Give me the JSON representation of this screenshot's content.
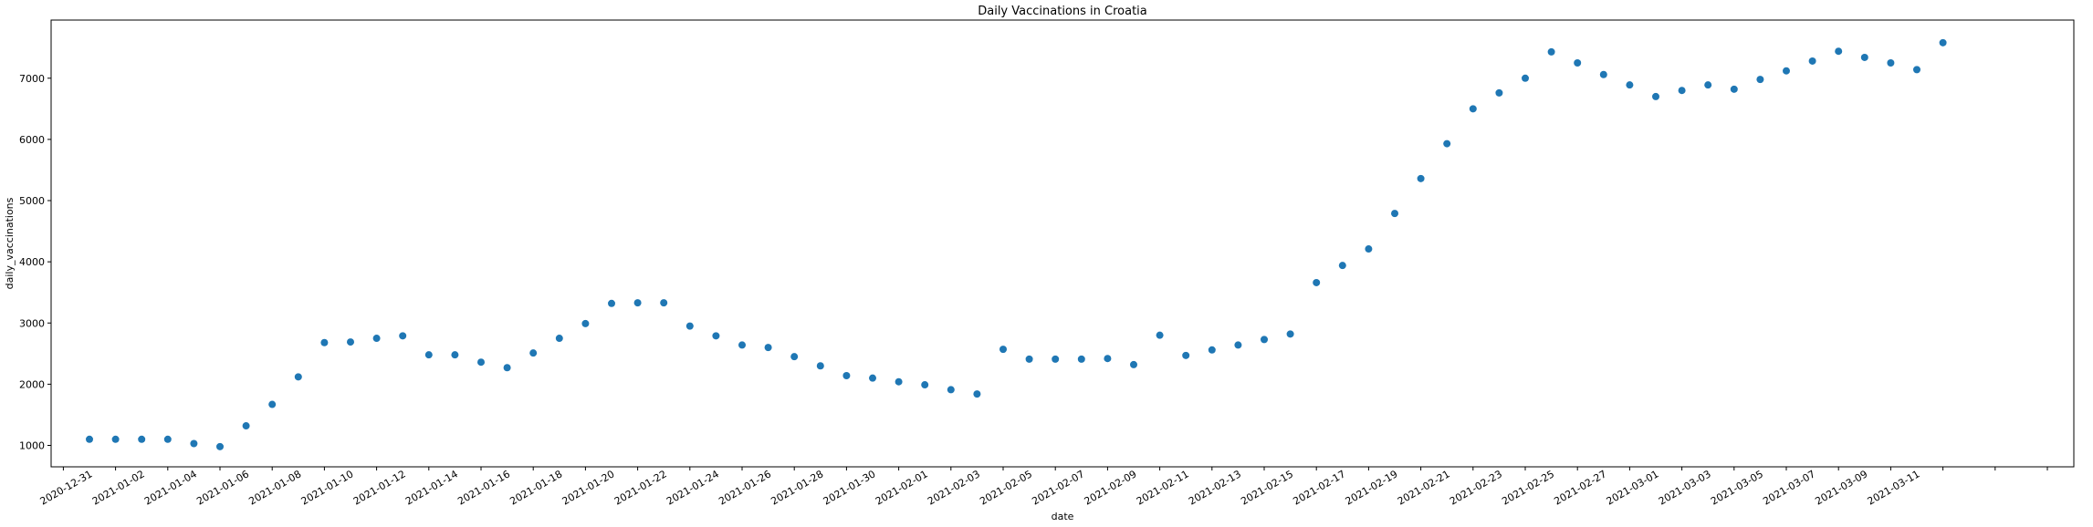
{
  "chart_data": {
    "type": "scatter",
    "title": "Daily Vaccinations in Croatia",
    "xlabel": "date",
    "ylabel": "daily_vaccinations",
    "x_start": "2020-12-31",
    "x_tick_labels": [
      "2020-12-31",
      "2021-01-02",
      "2021-01-04",
      "2021-01-06",
      "2021-01-08",
      "2021-01-10",
      "2021-01-12",
      "2021-01-14",
      "2021-01-16",
      "2021-01-18",
      "2021-01-20",
      "2021-01-22",
      "2021-01-24",
      "2021-01-26",
      "2021-01-28",
      "2021-01-30",
      "2021-02-01",
      "2021-02-03",
      "2021-02-05",
      "2021-02-07",
      "2021-02-09",
      "2021-02-11",
      "2021-02-13",
      "2021-02-15",
      "2021-02-17",
      "2021-02-19",
      "2021-02-21",
      "2021-02-23",
      "2021-02-25",
      "2021-02-27",
      "2021-03-01",
      "2021-03-03",
      "2021-03-05",
      "2021-03-07",
      "2021-03-09",
      "2021-03-11"
    ],
    "y_ticks": [
      1000,
      2000,
      3000,
      4000,
      5000,
      6000,
      7000
    ],
    "ylim": [
      650,
      7950
    ],
    "x": [
      "2020-12-31",
      "2021-01-01",
      "2021-01-02",
      "2021-01-03",
      "2021-01-04",
      "2021-01-05",
      "2021-01-06",
      "2021-01-07",
      "2021-01-08",
      "2021-01-09",
      "2021-01-10",
      "2021-01-11",
      "2021-01-12",
      "2021-01-13",
      "2021-01-14",
      "2021-01-15",
      "2021-01-16",
      "2021-01-17",
      "2021-01-18",
      "2021-01-19",
      "2021-01-20",
      "2021-01-21",
      "2021-01-22",
      "2021-01-23",
      "2021-01-24",
      "2021-01-25",
      "2021-01-26",
      "2021-01-27",
      "2021-01-28",
      "2021-01-29",
      "2021-01-30",
      "2021-01-31",
      "2021-02-01",
      "2021-02-02",
      "2021-02-03",
      "2021-02-04",
      "2021-02-05",
      "2021-02-06",
      "2021-02-07",
      "2021-02-08",
      "2021-02-09",
      "2021-02-10",
      "2021-02-11",
      "2021-02-12",
      "2021-02-13",
      "2021-02-14",
      "2021-02-15",
      "2021-02-16",
      "2021-02-17",
      "2021-02-18",
      "2021-02-19",
      "2021-02-20",
      "2021-02-21",
      "2021-02-22",
      "2021-02-23",
      "2021-02-24",
      "2021-02-25",
      "2021-02-26",
      "2021-02-27",
      "2021-02-28",
      "2021-03-01",
      "2021-03-02",
      "2021-03-03",
      "2021-03-04",
      "2021-03-05",
      "2021-03-06",
      "2021-03-07",
      "2021-03-08",
      "2021-03-09",
      "2021-03-10",
      "2021-03-11",
      "2021-03-12"
    ],
    "values": [
      1100,
      1100,
      1100,
      1100,
      1030,
      980,
      1320,
      1670,
      2120,
      2680,
      2690,
      2750,
      2790,
      2480,
      2480,
      2360,
      2270,
      2510,
      2750,
      2990,
      3320,
      3330,
      3330,
      2950,
      2790,
      2640,
      2600,
      2450,
      2300,
      2140,
      2100,
      2040,
      1990,
      1910,
      1840,
      2570,
      2410,
      2410,
      2410,
      2420,
      2320,
      2800,
      2470,
      2560,
      2640,
      2730,
      2820,
      3660,
      3940,
      4210,
      4790,
      5360,
      5930,
      6500,
      6760,
      7000,
      7430,
      7250,
      7060,
      6890,
      6700,
      6800,
      6890,
      6820,
      6980,
      7120,
      7280,
      7440,
      7340,
      7250,
      7140,
      7580
    ],
    "grid": false,
    "marker_color": "#1f77b4"
  }
}
